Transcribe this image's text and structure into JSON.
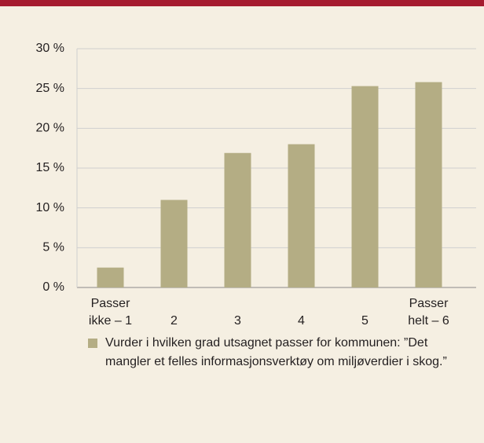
{
  "chart_data": {
    "type": "bar",
    "categories": [
      "Passer ikke – 1",
      "2",
      "3",
      "4",
      "5",
      "Passer helt – 6"
    ],
    "series": [
      {
        "name": "Vurder i hvilken grad utsagnet passer for kommunen: ”Det mangler et felles informasjonsverktøy om miljøverdier i skog.”",
        "color": "#b4ad84",
        "values": [
          2.5,
          11,
          16.9,
          18,
          25.3,
          25.8
        ]
      }
    ],
    "ylim": [
      0,
      30
    ],
    "yticks": [
      {
        "value": 0,
        "label": "0 %"
      },
      {
        "value": 5,
        "label": "5 %"
      },
      {
        "value": 10,
        "label": "10 %"
      },
      {
        "value": 15,
        "label": "15 %"
      },
      {
        "value": 20,
        "label": "20 %"
      },
      {
        "value": 25,
        "label": "25 %"
      },
      {
        "value": 30,
        "label": "30 %"
      }
    ],
    "grid": true
  }
}
